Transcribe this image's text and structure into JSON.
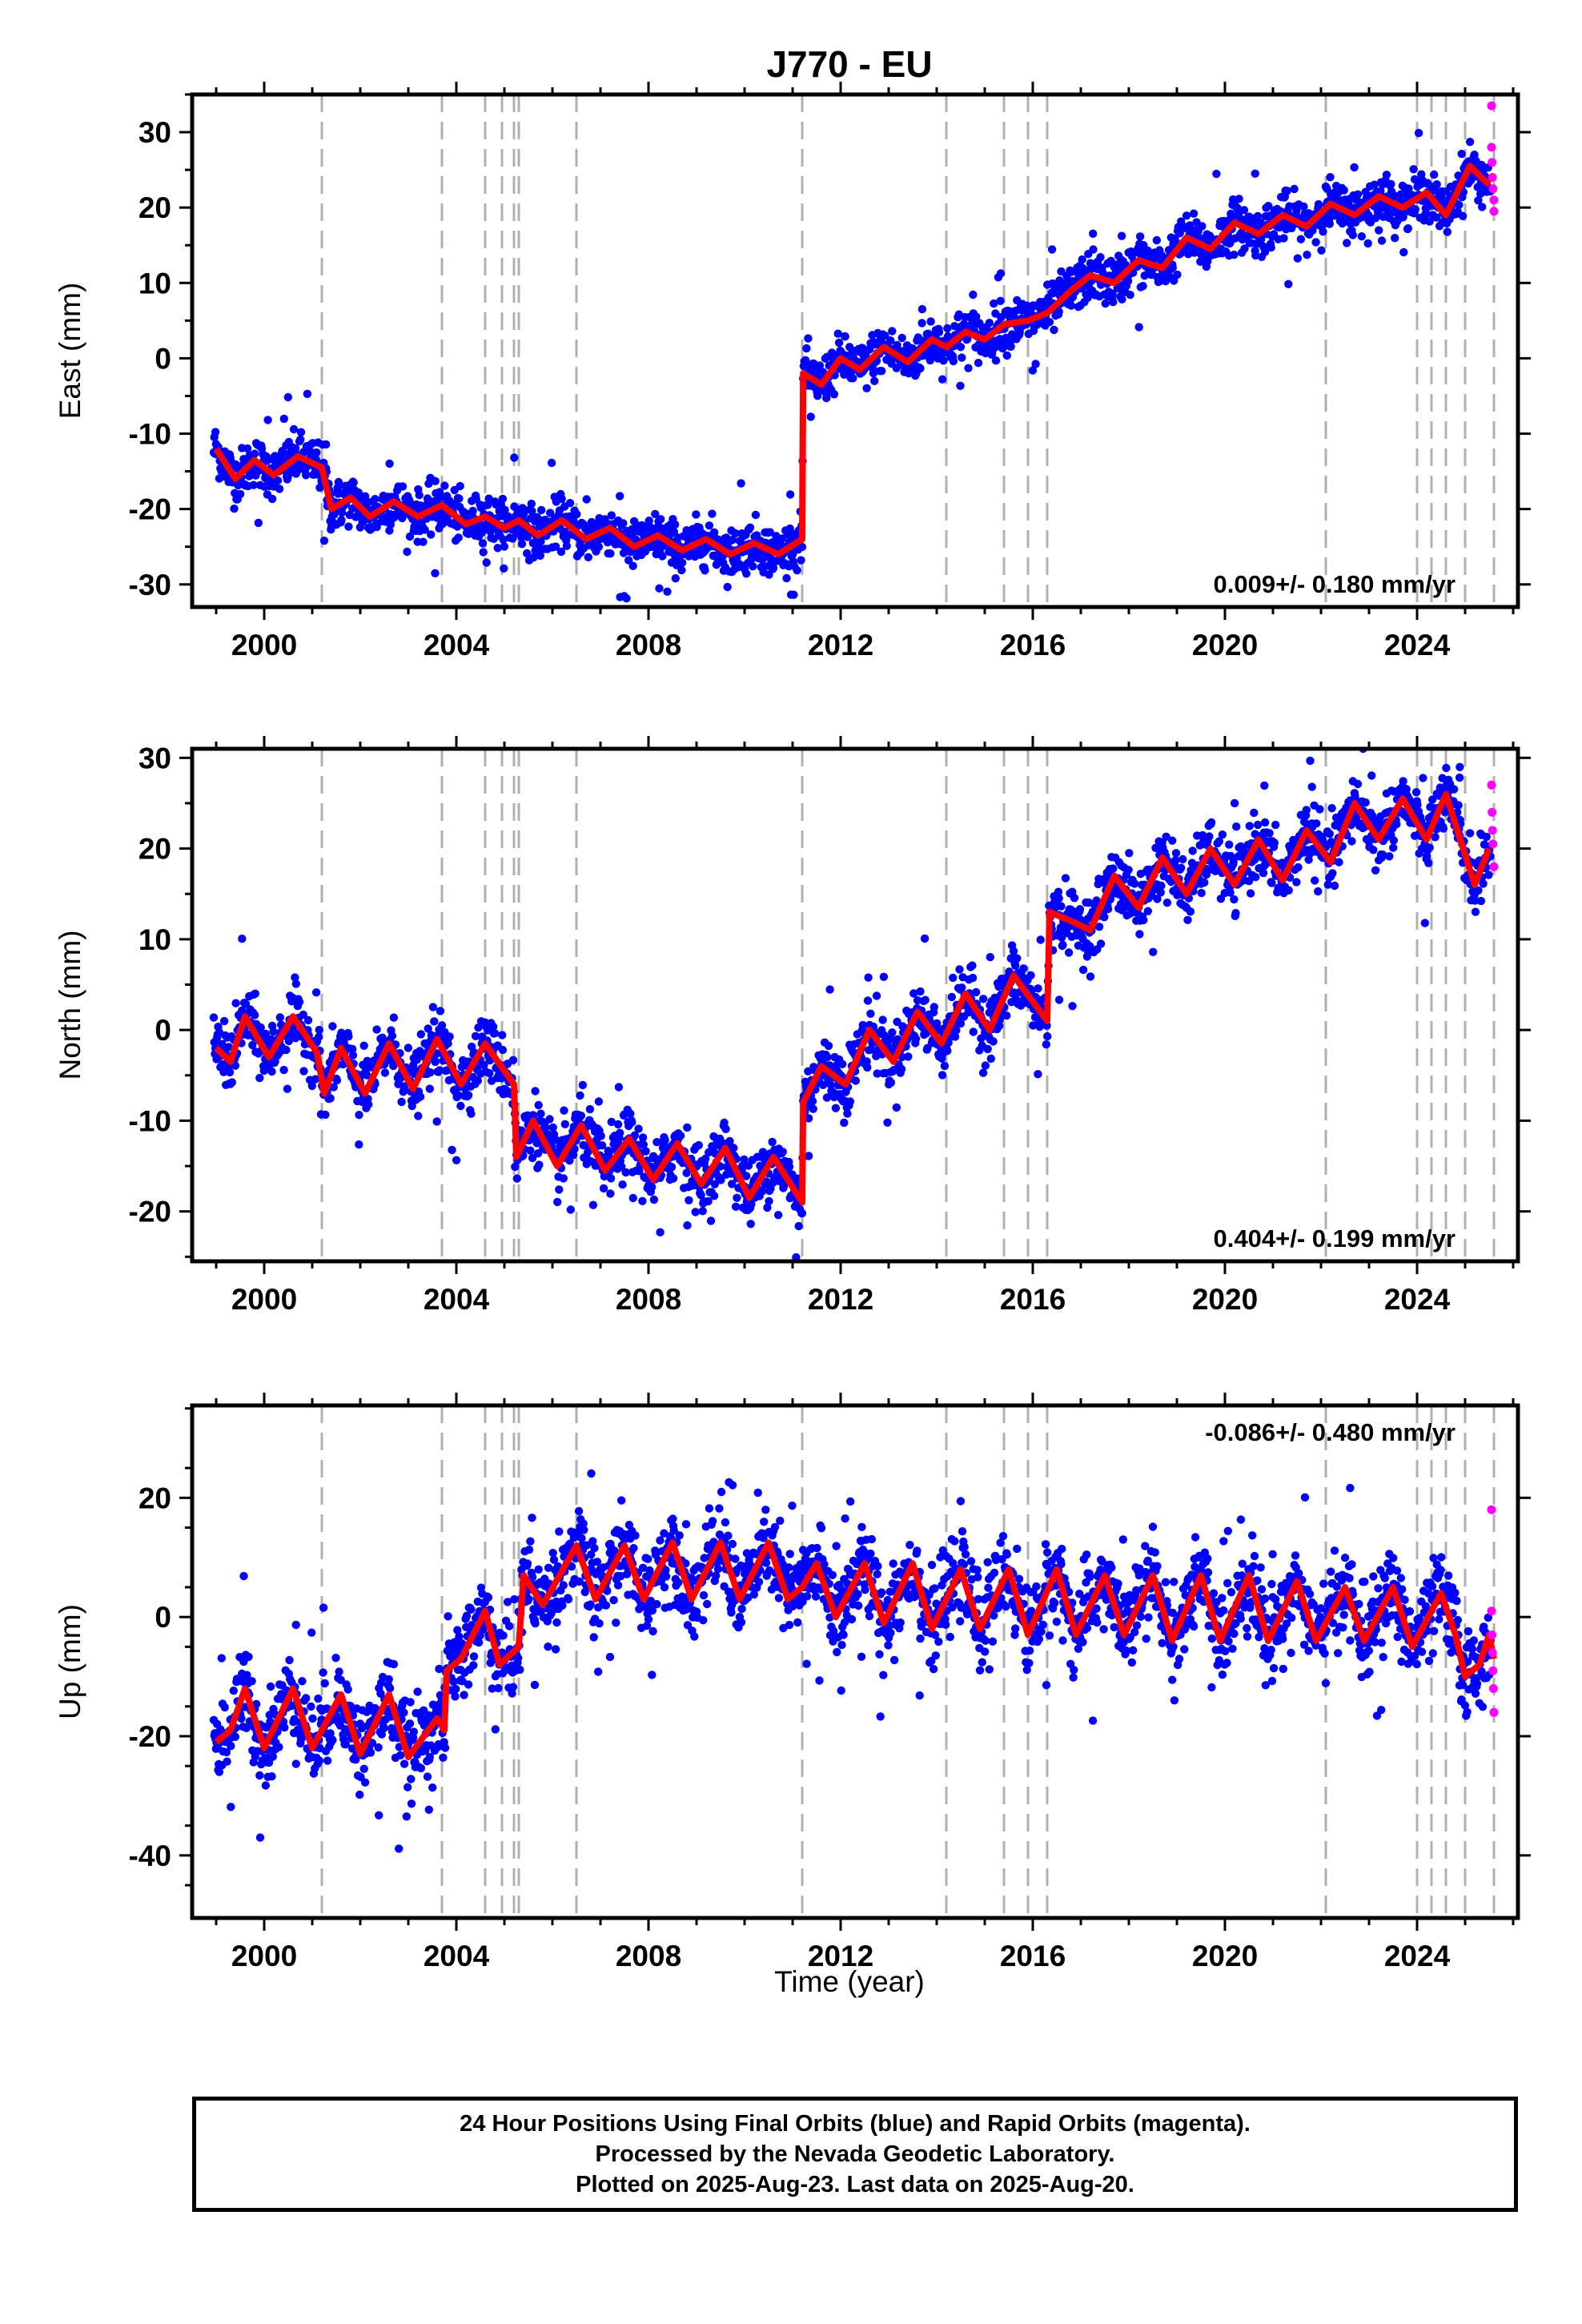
{
  "title": "J770 - EU",
  "xlabel": "Time (year)",
  "x_ticks": [
    "2000",
    "2004",
    "2008",
    "2012",
    "2016",
    "2020",
    "2024"
  ],
  "colors": {
    "final_orbits": "#0000ff",
    "rapid_orbits": "#ff00ff",
    "model": "#ff0000",
    "event_lines": "#b0b0b0"
  },
  "footer": {
    "line1": "24 Hour Positions Using Final Orbits (blue) and Rapid Orbits (magenta).",
    "line2": "Processed by the Nevada Geodetic Laboratory.",
    "line3": "Plotted on 2025-Aug-23. Last data on 2025-Aug-20."
  },
  "chart_data": [
    {
      "type": "scatter",
      "ylabel": "East (mm)",
      "velocity_label": "0.009+/- 0.180 mm/yr",
      "legend_position": "bottom-right",
      "xlim": [
        1998.5,
        2026.1
      ],
      "ylim": [
        -33,
        35
      ],
      "yticks": [
        "30",
        "20",
        "10",
        "0",
        "-10",
        "-20",
        "-30"
      ],
      "event_lines": [
        2001.2,
        2003.7,
        2004.6,
        2004.95,
        2005.2,
        2005.3,
        2006.5,
        2011.2,
        2014.2,
        2015.4,
        2015.9,
        2016.3,
        2022.1,
        2024.0,
        2024.3,
        2024.6,
        2025.0,
        2025.6
      ],
      "model": [
        [
          1999.0,
          -12
        ],
        [
          1999.4,
          -16
        ],
        [
          1999.8,
          -13.5
        ],
        [
          2000.2,
          -15.5
        ],
        [
          2000.7,
          -13
        ],
        [
          2001.2,
          -14.5
        ],
        [
          2001.4,
          -20
        ],
        [
          2001.8,
          -18.5
        ],
        [
          2002.2,
          -21
        ],
        [
          2002.7,
          -19
        ],
        [
          2003.2,
          -21
        ],
        [
          2003.7,
          -19.5
        ],
        [
          2004.2,
          -22
        ],
        [
          2004.6,
          -21
        ],
        [
          2005.0,
          -22.5
        ],
        [
          2005.3,
          -21.5
        ],
        [
          2005.7,
          -23.5
        ],
        [
          2006.2,
          -21.5
        ],
        [
          2006.7,
          -24
        ],
        [
          2007.2,
          -22.5
        ],
        [
          2007.7,
          -25
        ],
        [
          2008.2,
          -23.5
        ],
        [
          2008.7,
          -25.5
        ],
        [
          2009.2,
          -24
        ],
        [
          2009.7,
          -26
        ],
        [
          2010.2,
          -24.5
        ],
        [
          2010.7,
          -26
        ],
        [
          2011.2,
          -24
        ],
        [
          2011.22,
          -2
        ],
        [
          2011.6,
          -3.5
        ],
        [
          2012.0,
          0
        ],
        [
          2012.4,
          -1.5
        ],
        [
          2012.9,
          1.5
        ],
        [
          2013.4,
          -0.5
        ],
        [
          2013.9,
          2.5
        ],
        [
          2014.2,
          1.5
        ],
        [
          2014.6,
          3.5
        ],
        [
          2015.0,
          2.5
        ],
        [
          2015.4,
          4.5
        ],
        [
          2015.9,
          5
        ],
        [
          2016.3,
          6
        ],
        [
          2016.8,
          9
        ],
        [
          2017.2,
          11
        ],
        [
          2017.7,
          10
        ],
        [
          2018.2,
          13
        ],
        [
          2018.7,
          12
        ],
        [
          2019.2,
          16
        ],
        [
          2019.7,
          14.5
        ],
        [
          2020.2,
          18
        ],
        [
          2020.7,
          16.5
        ],
        [
          2021.2,
          19
        ],
        [
          2021.7,
          17.5
        ],
        [
          2022.2,
          20.5
        ],
        [
          2022.7,
          19
        ],
        [
          2023.2,
          21.5
        ],
        [
          2023.7,
          20
        ],
        [
          2024.2,
          22
        ],
        [
          2024.6,
          19
        ],
        [
          2025.1,
          25.5
        ],
        [
          2025.5,
          23
        ]
      ],
      "rapid_points": [
        [
          2025.55,
          33.5
        ],
        [
          2025.55,
          28
        ],
        [
          2025.56,
          26
        ],
        [
          2025.57,
          24
        ],
        [
          2025.58,
          22.5
        ],
        [
          2025.6,
          21
        ],
        [
          2025.6,
          19.5
        ]
      ]
    },
    {
      "type": "scatter",
      "ylabel": "North (mm)",
      "velocity_label": "0.404+/- 0.199 mm/yr",
      "legend_position": "bottom-right",
      "xlim": [
        1998.5,
        2026.1
      ],
      "ylim": [
        -25.5,
        31
      ],
      "yticks": [
        "30",
        "20",
        "10",
        "0",
        "-10",
        "-20"
      ],
      "event_lines": [
        2001.2,
        2003.7,
        2004.6,
        2004.95,
        2005.2,
        2005.3,
        2006.5,
        2011.2,
        2014.2,
        2015.4,
        2015.9,
        2016.3,
        2022.1,
        2024.0,
        2024.3,
        2024.6,
        2025.0,
        2025.6
      ],
      "model": [
        [
          1999.0,
          -2
        ],
        [
          1999.3,
          -3.5
        ],
        [
          1999.6,
          1.5
        ],
        [
          2000.1,
          -3
        ],
        [
          2000.6,
          1.5
        ],
        [
          2001.1,
          -2.5
        ],
        [
          2001.25,
          -7
        ],
        [
          2001.6,
          -2
        ],
        [
          2002.1,
          -7
        ],
        [
          2002.6,
          -1.5
        ],
        [
          2003.1,
          -6.5
        ],
        [
          2003.6,
          -1
        ],
        [
          2004.1,
          -6
        ],
        [
          2004.6,
          -1.5
        ],
        [
          2005.2,
          -6
        ],
        [
          2005.25,
          -14
        ],
        [
          2005.6,
          -10
        ],
        [
          2006.1,
          -15
        ],
        [
          2006.6,
          -10.5
        ],
        [
          2007.1,
          -15.5
        ],
        [
          2007.6,
          -12
        ],
        [
          2008.1,
          -16.5
        ],
        [
          2008.6,
          -12.5
        ],
        [
          2009.1,
          -17
        ],
        [
          2009.6,
          -13
        ],
        [
          2010.1,
          -18.5
        ],
        [
          2010.6,
          -14
        ],
        [
          2011.2,
          -19
        ],
        [
          2011.22,
          -8
        ],
        [
          2011.6,
          -4
        ],
        [
          2012.1,
          -6
        ],
        [
          2012.6,
          0
        ],
        [
          2013.1,
          -3.5
        ],
        [
          2013.6,
          2
        ],
        [
          2014.1,
          -1.5
        ],
        [
          2014.6,
          4
        ],
        [
          2015.1,
          0
        ],
        [
          2015.6,
          6
        ],
        [
          2016.3,
          1
        ],
        [
          2016.35,
          13
        ],
        [
          2016.8,
          12
        ],
        [
          2017.2,
          11
        ],
        [
          2017.7,
          17
        ],
        [
          2018.2,
          13.5
        ],
        [
          2018.7,
          19
        ],
        [
          2019.2,
          15
        ],
        [
          2019.7,
          20
        ],
        [
          2020.2,
          16
        ],
        [
          2020.7,
          21
        ],
        [
          2021.2,
          16.5
        ],
        [
          2021.7,
          22
        ],
        [
          2022.2,
          18.5
        ],
        [
          2022.7,
          25
        ],
        [
          2023.2,
          21
        ],
        [
          2023.7,
          25.5
        ],
        [
          2024.2,
          21
        ],
        [
          2024.6,
          26
        ],
        [
          2025.2,
          16
        ],
        [
          2025.5,
          20
        ]
      ],
      "rapid_points": [
        [
          2025.55,
          27
        ],
        [
          2025.56,
          24
        ],
        [
          2025.57,
          22
        ],
        [
          2025.58,
          20.5
        ],
        [
          2025.6,
          18
        ]
      ]
    },
    {
      "type": "scatter",
      "ylabel": "Up (mm)",
      "velocity_label": "-0.086+/- 0.480 mm/yr",
      "legend_position": "top-right",
      "xlim": [
        1998.5,
        2026.1
      ],
      "ylim": [
        -50.5,
        35.5
      ],
      "yticks": [
        "20",
        "0",
        "-20",
        "-40"
      ],
      "event_lines": [
        2001.2,
        2003.7,
        2004.6,
        2004.95,
        2005.2,
        2005.3,
        2006.5,
        2011.2,
        2014.2,
        2015.4,
        2015.9,
        2016.3,
        2022.1,
        2024.0,
        2024.3,
        2024.6,
        2025.0,
        2025.6
      ],
      "model": [
        [
          1999.0,
          -21
        ],
        [
          1999.3,
          -19
        ],
        [
          1999.6,
          -12
        ],
        [
          2000.0,
          -22
        ],
        [
          2000.6,
          -12
        ],
        [
          2001.0,
          -22
        ],
        [
          2001.6,
          -13
        ],
        [
          2002.0,
          -23
        ],
        [
          2002.6,
          -13
        ],
        [
          2003.0,
          -23.5
        ],
        [
          2003.6,
          -17
        ],
        [
          2003.75,
          -19
        ],
        [
          2003.8,
          -9
        ],
        [
          2004.1,
          -7
        ],
        [
          2004.6,
          1
        ],
        [
          2004.9,
          -8
        ],
        [
          2005.3,
          -5
        ],
        [
          2005.4,
          7
        ],
        [
          2005.8,
          2
        ],
        [
          2006.5,
          12
        ],
        [
          2006.9,
          3
        ],
        [
          2007.5,
          12
        ],
        [
          2007.9,
          3
        ],
        [
          2008.5,
          12.5
        ],
        [
          2008.9,
          3
        ],
        [
          2009.5,
          12.5
        ],
        [
          2009.9,
          3
        ],
        [
          2010.5,
          12.5
        ],
        [
          2010.9,
          3
        ],
        [
          2011.2,
          5
        ],
        [
          2011.5,
          9
        ],
        [
          2011.9,
          0
        ],
        [
          2012.5,
          9
        ],
        [
          2012.9,
          -1
        ],
        [
          2013.5,
          9
        ],
        [
          2013.9,
          -2
        ],
        [
          2014.5,
          8
        ],
        [
          2014.9,
          -2
        ],
        [
          2015.5,
          8
        ],
        [
          2015.9,
          -3
        ],
        [
          2016.5,
          8
        ],
        [
          2016.9,
          -3
        ],
        [
          2017.5,
          7
        ],
        [
          2017.9,
          -3
        ],
        [
          2018.5,
          7
        ],
        [
          2018.9,
          -4
        ],
        [
          2019.5,
          7
        ],
        [
          2019.9,
          -4
        ],
        [
          2020.5,
          7
        ],
        [
          2020.9,
          -4
        ],
        [
          2021.5,
          6
        ],
        [
          2021.9,
          -4
        ],
        [
          2022.5,
          5
        ],
        [
          2022.9,
          -4
        ],
        [
          2023.5,
          5
        ],
        [
          2023.9,
          -5
        ],
        [
          2024.5,
          4
        ],
        [
          2024.8,
          -3
        ],
        [
          2025.0,
          -10
        ],
        [
          2025.3,
          -8
        ],
        [
          2025.5,
          -3
        ],
        [
          2025.6,
          -7
        ]
      ],
      "rapid_points": [
        [
          2025.55,
          18
        ],
        [
          2025.55,
          1
        ],
        [
          2025.56,
          -3
        ],
        [
          2025.57,
          -6
        ],
        [
          2025.58,
          -9
        ],
        [
          2025.59,
          -12
        ],
        [
          2025.6,
          -16
        ]
      ]
    }
  ]
}
